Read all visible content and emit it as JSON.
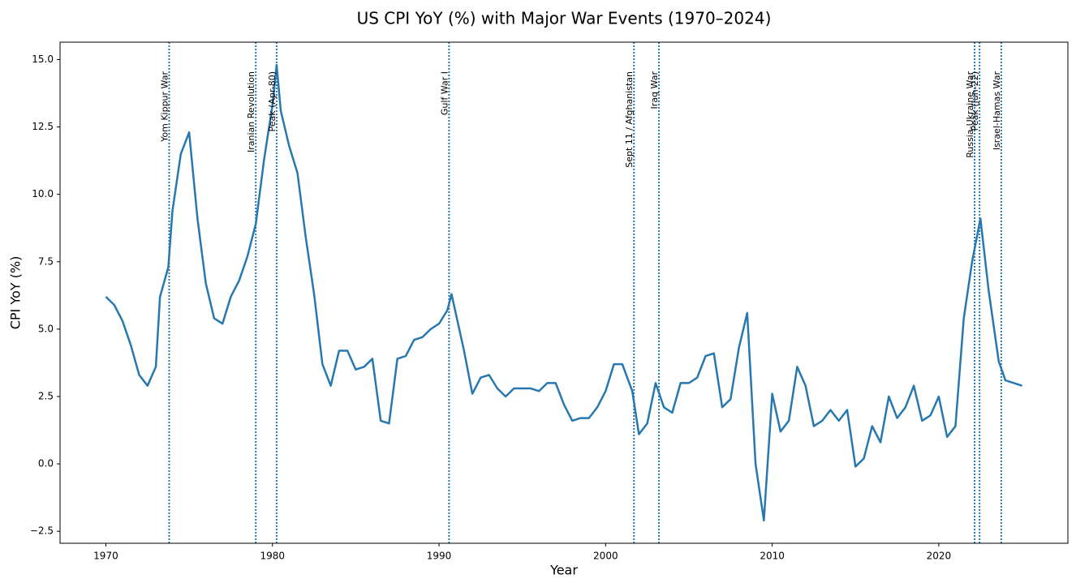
{
  "chart_data": {
    "type": "line",
    "title": "US CPI YoY (%) with Major War Events (1970–2024)",
    "x_label": "Year",
    "y_label": "CPI YoY (%)",
    "color": "#2878b0",
    "x": [
      1970.0,
      1970.5,
      1971.0,
      1971.5,
      1972.0,
      1972.5,
      1973.0,
      1973.25,
      1973.75,
      1974.0,
      1974.5,
      1975.0,
      1975.5,
      1976.0,
      1976.5,
      1977.0,
      1977.5,
      1978.0,
      1978.5,
      1979.0,
      1979.5,
      1980.0,
      1980.25,
      1980.5,
      1981.0,
      1981.5,
      1982.0,
      1982.5,
      1983.0,
      1983.5,
      1984.0,
      1984.5,
      1985.0,
      1985.5,
      1986.0,
      1986.5,
      1987.0,
      1987.5,
      1988.0,
      1988.5,
      1989.0,
      1989.5,
      1990.0,
      1990.5,
      1990.75,
      1991.5,
      1992.0,
      1992.5,
      1993.0,
      1993.5,
      1994.0,
      1994.5,
      1995.0,
      1995.5,
      1996.0,
      1996.5,
      1997.0,
      1997.5,
      1998.0,
      1998.5,
      1999.0,
      1999.5,
      2000.0,
      2000.5,
      2001.0,
      2001.6,
      2002.0,
      2002.5,
      2003.0,
      2003.5,
      2004.0,
      2004.5,
      2005.0,
      2005.5,
      2006.0,
      2006.5,
      2007.0,
      2007.5,
      2008.0,
      2008.5,
      2009.0,
      2009.5,
      2010.0,
      2010.5,
      2011.0,
      2011.5,
      2012.0,
      2012.5,
      2013.0,
      2013.5,
      2014.0,
      2014.5,
      2015.0,
      2015.5,
      2016.0,
      2016.5,
      2017.0,
      2017.5,
      2018.0,
      2018.5,
      2019.0,
      2019.5,
      2020.0,
      2020.5,
      2021.0,
      2021.5,
      2022.0,
      2022.5,
      2023.0,
      2023.6,
      2024.0,
      2025.0
    ],
    "values": [
      6.2,
      5.9,
      5.3,
      4.4,
      3.3,
      2.9,
      3.6,
      6.2,
      7.3,
      9.4,
      11.5,
      12.3,
      9.1,
      6.7,
      5.4,
      5.2,
      6.2,
      6.8,
      7.7,
      8.9,
      11.3,
      13.3,
      14.8,
      13.1,
      11.8,
      10.8,
      8.4,
      6.3,
      3.7,
      2.9,
      4.2,
      4.2,
      3.5,
      3.6,
      3.9,
      1.6,
      1.5,
      3.9,
      4.0,
      4.6,
      4.7,
      5.0,
      5.2,
      5.7,
      6.3,
      4.2,
      2.6,
      3.2,
      3.3,
      2.8,
      2.5,
      2.8,
      2.8,
      2.8,
      2.7,
      3.0,
      3.0,
      2.2,
      1.6,
      1.7,
      1.7,
      2.1,
      2.7,
      3.7,
      3.7,
      2.7,
      1.1,
      1.5,
      3.0,
      2.1,
      1.9,
      3.0,
      3.0,
      3.2,
      4.0,
      4.1,
      2.1,
      2.4,
      4.3,
      5.6,
      0.0,
      -2.1,
      2.6,
      1.2,
      1.6,
      3.6,
      2.9,
      1.4,
      1.6,
      2.0,
      1.6,
      2.0,
      -0.1,
      0.2,
      1.4,
      0.8,
      2.5,
      1.7,
      2.1,
      2.9,
      1.6,
      1.8,
      2.5,
      1.0,
      1.4,
      5.4,
      7.5,
      9.1,
      6.4,
      3.8,
      3.1,
      2.9
    ],
    "events": [
      {
        "x": 1973.8,
        "label": "Yom Kippur War"
      },
      {
        "x": 1979.0,
        "label": "Iranian Revolution"
      },
      {
        "x": 1980.25,
        "label": "Peak (Apr-80)"
      },
      {
        "x": 1990.6,
        "label": "Gulf War I"
      },
      {
        "x": 2001.7,
        "label": "Sept 11 / Afghanistan"
      },
      {
        "x": 2003.2,
        "label": "Iraq War"
      },
      {
        "x": 2022.15,
        "label": "Russia-Ukraine War"
      },
      {
        "x": 2022.45,
        "label": "Peak (Jun-22)"
      },
      {
        "x": 2023.75,
        "label": "Israel-Hamas War"
      }
    ],
    "xlim": [
      1967.25,
      2027.75
    ],
    "ylim": [
      -2.945,
      15.645
    ],
    "xticks": [
      1970,
      1980,
      1990,
      2000,
      2010,
      2020
    ],
    "yticks": [
      {
        "value": -2.5,
        "label": "−2.5"
      },
      {
        "value": 0,
        "label": "0.0"
      },
      {
        "value": 2.5,
        "label": "2.5"
      },
      {
        "value": 5,
        "label": "5.0"
      },
      {
        "value": 7.5,
        "label": "7.5"
      },
      {
        "value": 10,
        "label": "10.0"
      },
      {
        "value": 12.5,
        "label": "12.5"
      },
      {
        "value": 15,
        "label": "15.0"
      }
    ],
    "grid": false
  }
}
